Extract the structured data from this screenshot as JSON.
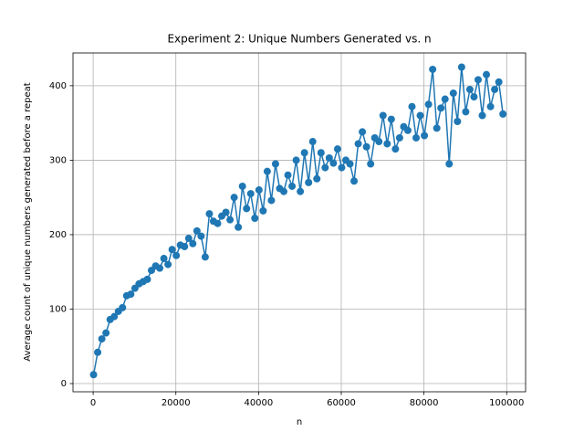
{
  "chart_data": {
    "type": "line",
    "title": "Experiment 2: Unique Numbers Generated vs. n",
    "xlabel": "n",
    "ylabel": "Average count of unique numbers generated before a repeat",
    "x": [
      100,
      1100,
      2100,
      3100,
      4100,
      5100,
      6100,
      7100,
      8100,
      9100,
      10100,
      11100,
      12100,
      13100,
      14100,
      15100,
      16100,
      17100,
      18100,
      19100,
      20100,
      21100,
      22100,
      23100,
      24100,
      25100,
      26100,
      27100,
      28100,
      29100,
      30100,
      31100,
      32100,
      33100,
      34100,
      35100,
      36100,
      37100,
      38100,
      39100,
      40100,
      41100,
      42100,
      43100,
      44100,
      45100,
      46100,
      47100,
      48100,
      49100,
      50100,
      51100,
      52100,
      53100,
      54100,
      55100,
      56100,
      57100,
      58100,
      59100,
      60100,
      61100,
      62100,
      63100,
      64100,
      65100,
      66100,
      67100,
      68100,
      69100,
      70100,
      71100,
      72100,
      73100,
      74100,
      75100,
      76100,
      77100,
      78100,
      79100,
      80100,
      81100,
      82100,
      83100,
      84100,
      85100,
      86100,
      87100,
      88100,
      89100,
      90100,
      91100,
      92100,
      93100,
      94100,
      95100,
      96100,
      97100,
      98100,
      99100
    ],
    "series": [
      {
        "name": "Average count",
        "color": "#1f77b4",
        "values": [
          12,
          42,
          60,
          68,
          86,
          90,
          97,
          102,
          118,
          120,
          128,
          134,
          137,
          140,
          152,
          158,
          155,
          168,
          160,
          180,
          172,
          186,
          184,
          195,
          188,
          205,
          198,
          170,
          228,
          218,
          215,
          225,
          230,
          220,
          250,
          210,
          265,
          235,
          255,
          222,
          260,
          232,
          285,
          246,
          295,
          262,
          258,
          280,
          265,
          300,
          258,
          310,
          270,
          325,
          275,
          310,
          290,
          303,
          296,
          315,
          290,
          300,
          295,
          272,
          322,
          338,
          318,
          295,
          330,
          325,
          360,
          322,
          355,
          315,
          330,
          345,
          340,
          372,
          330,
          360,
          333,
          375,
          422,
          343,
          370,
          382,
          295,
          390,
          352,
          425,
          365,
          395,
          385,
          408,
          360,
          415,
          372,
          395,
          405,
          362
        ]
      }
    ],
    "xlim": [
      -4875,
      104575
    ],
    "ylim": [
      -11,
      444
    ],
    "xticks": [
      0,
      20000,
      40000,
      60000,
      80000,
      100000
    ],
    "yticks": [
      0,
      100,
      200,
      300,
      400
    ],
    "grid": true
  }
}
